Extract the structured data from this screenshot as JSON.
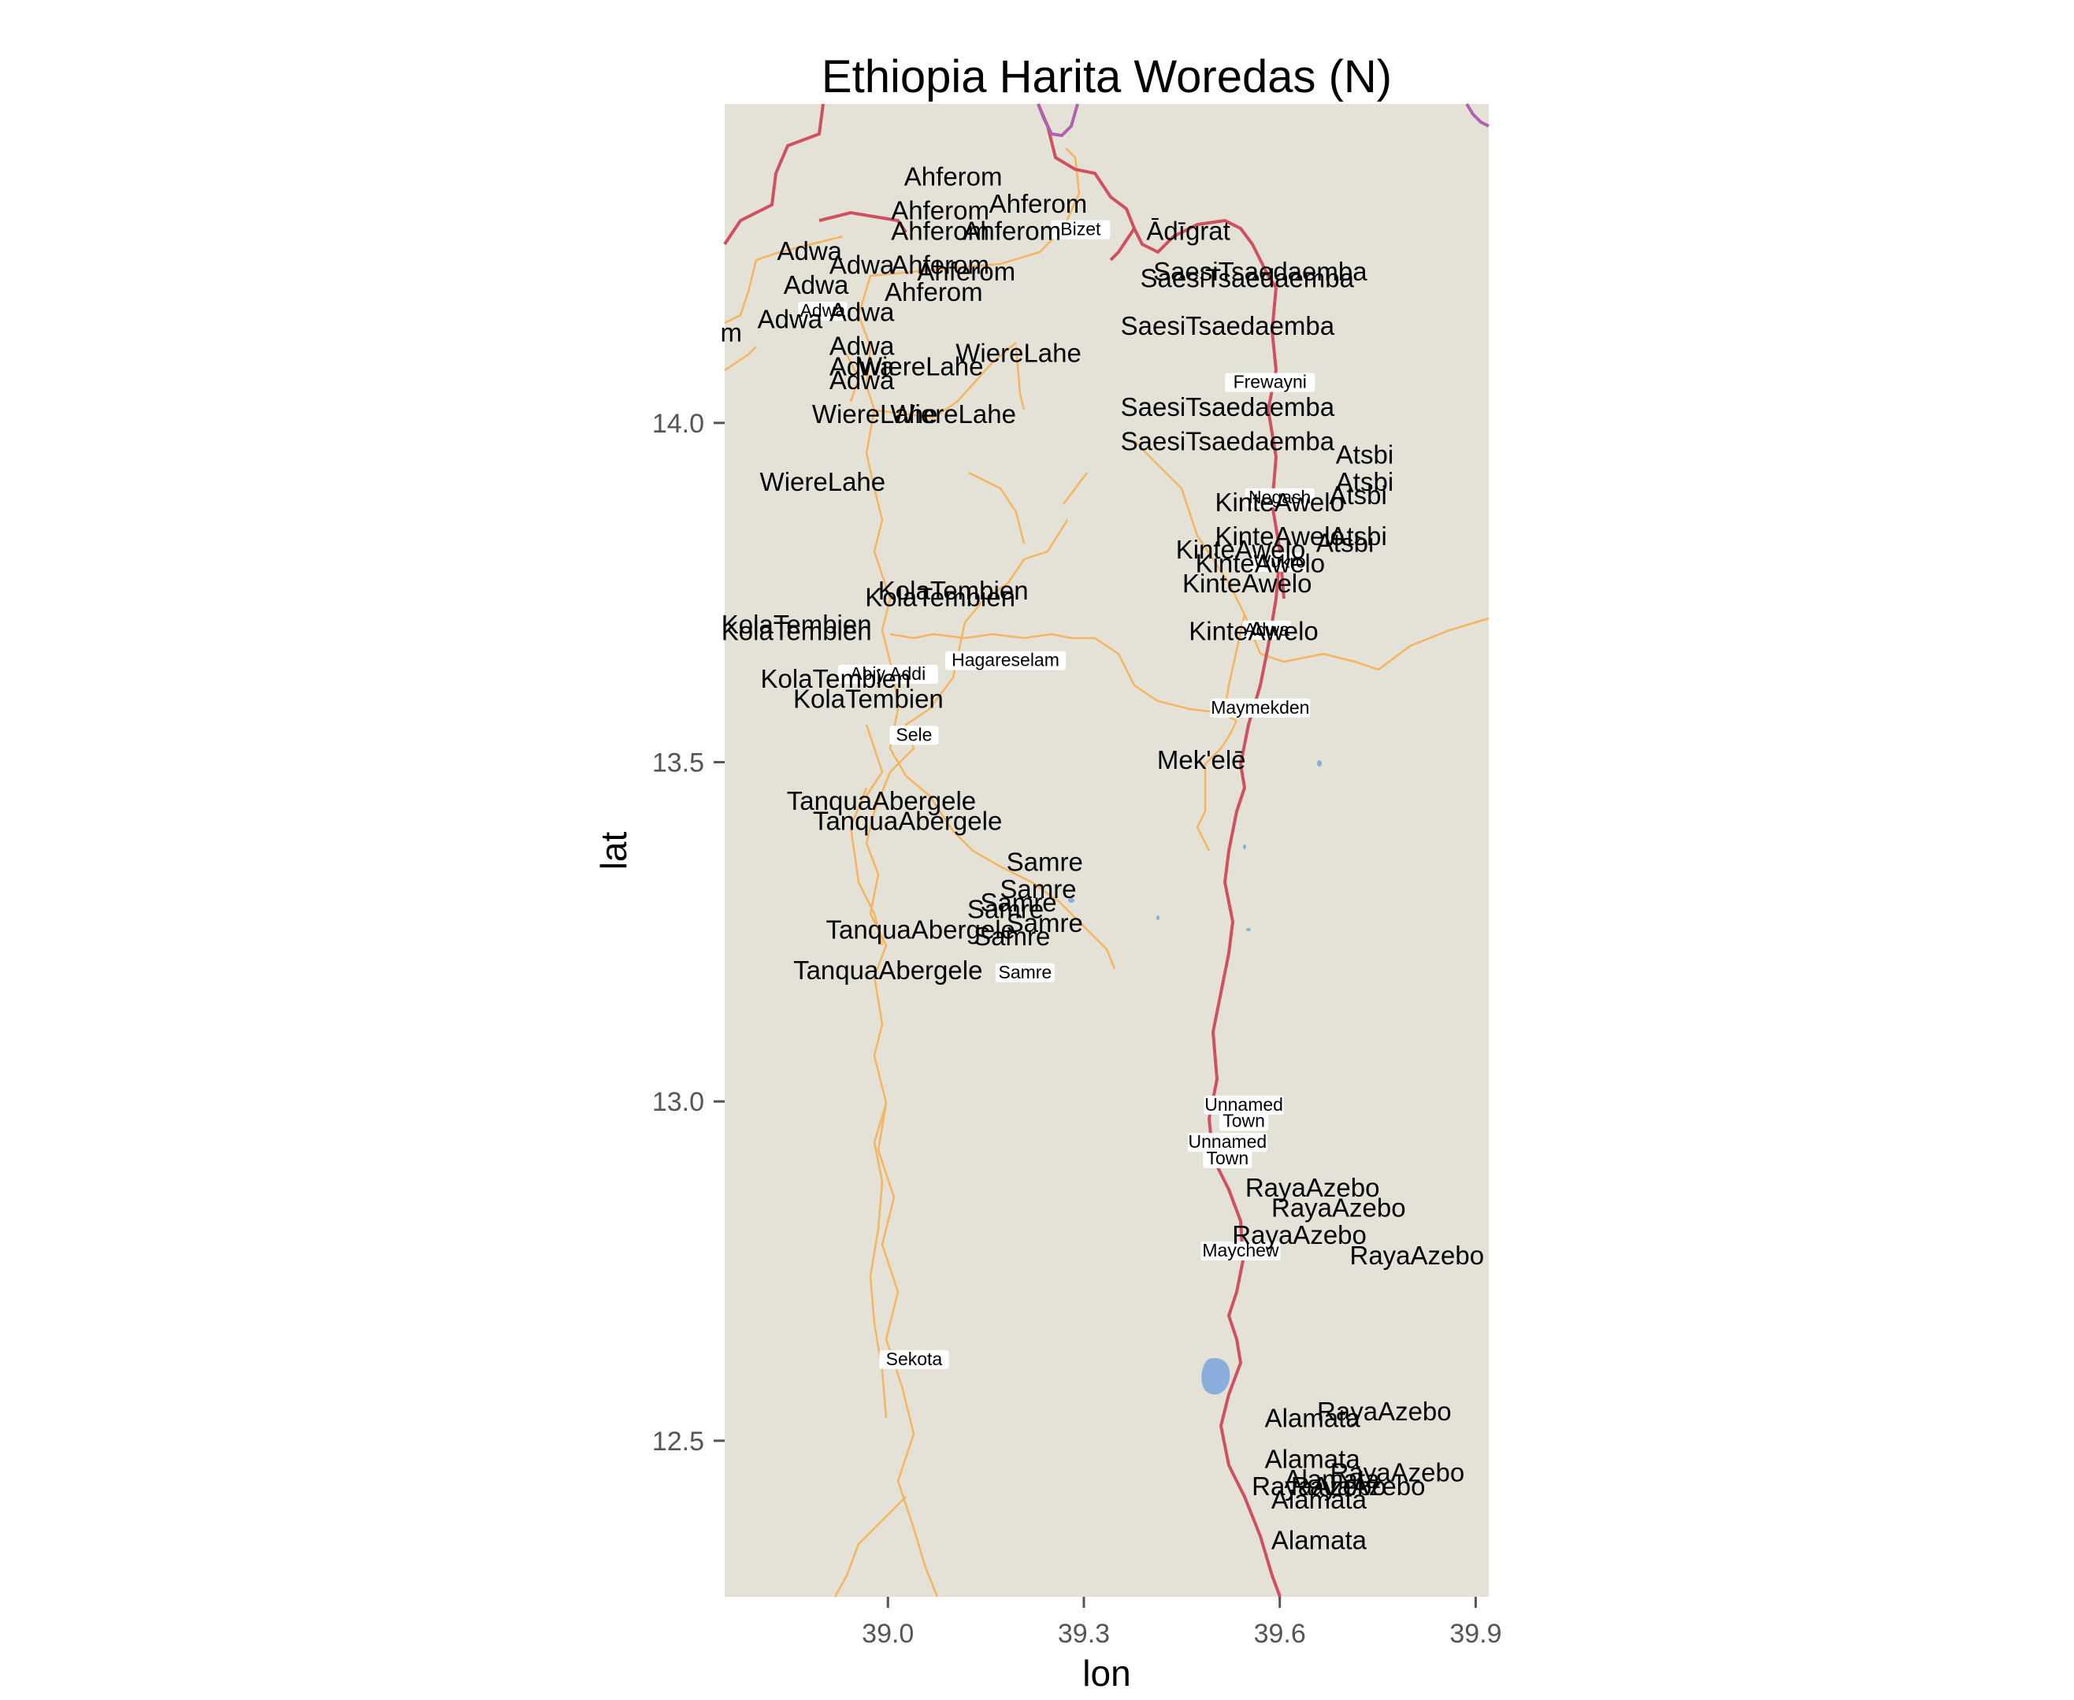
{
  "title": "Ethiopia Harita Woredas (N)",
  "xlabel": "lon",
  "ylabel": "lat",
  "map": {
    "background": "#e4e2d6",
    "colors": {
      "border_national": "#d05060",
      "border_international": "#b060b0",
      "roads": "#f5b560",
      "water": "#8aaedb"
    },
    "xlim": [
      38.75,
      39.92
    ],
    "ylim": [
      12.27,
      14.47
    ],
    "x_ticks": [
      {
        "value": 39.0,
        "label": "39.0"
      },
      {
        "value": 39.3,
        "label": "39.3"
      },
      {
        "value": 39.6,
        "label": "39.6"
      },
      {
        "value": 39.9,
        "label": "39.9"
      }
    ],
    "y_ticks": [
      {
        "value": 12.5,
        "label": "12.5"
      },
      {
        "value": 13.0,
        "label": "13.0"
      },
      {
        "value": 13.5,
        "label": "13.5"
      },
      {
        "value": 14.0,
        "label": "14.0"
      }
    ],
    "woreda_labels": [
      {
        "text": "Ahferom",
        "lon": 39.1,
        "lat": 14.35
      },
      {
        "text": "Ahferom",
        "lon": 39.23,
        "lat": 14.31
      },
      {
        "text": "Ahferom",
        "lon": 39.08,
        "lat": 14.3
      },
      {
        "text": "Ahferom",
        "lon": 39.19,
        "lat": 14.27
      },
      {
        "text": "Ahferom",
        "lon": 39.08,
        "lat": 14.27
      },
      {
        "text": "Ahferom",
        "lon": 39.08,
        "lat": 14.22
      },
      {
        "text": "Ahferom",
        "lon": 39.12,
        "lat": 14.21
      },
      {
        "text": "Ahferom",
        "lon": 39.07,
        "lat": 14.18
      },
      {
        "text": "Ādīgrat",
        "lon": 39.46,
        "lat": 14.27
      },
      {
        "text": "Adwa",
        "lon": 38.88,
        "lat": 14.24
      },
      {
        "text": "Adwa",
        "lon": 38.96,
        "lat": 14.22
      },
      {
        "text": "Adwa",
        "lon": 38.89,
        "lat": 14.19
      },
      {
        "text": "Adwa",
        "lon": 38.85,
        "lat": 14.14
      },
      {
        "text": "Adwa",
        "lon": 38.96,
        "lat": 14.15
      },
      {
        "text": "Adwa",
        "lon": 38.96,
        "lat": 14.1
      },
      {
        "text": "Adwa",
        "lon": 38.96,
        "lat": 14.07
      },
      {
        "text": "Adwa",
        "lon": 38.96,
        "lat": 14.05
      },
      {
        "text": "m",
        "lon": 38.76,
        "lat": 14.12
      },
      {
        "text": "WiereLahe",
        "lon": 39.2,
        "lat": 14.09
      },
      {
        "text": "WiereLahe",
        "lon": 39.05,
        "lat": 14.07
      },
      {
        "text": "WiereLahe",
        "lon": 38.98,
        "lat": 14.0
      },
      {
        "text": "WiereLahe",
        "lon": 39.1,
        "lat": 14.0
      },
      {
        "text": "WiereLahe",
        "lon": 38.9,
        "lat": 13.9
      },
      {
        "text": "SaesiTsaedaemba",
        "lon": 39.57,
        "lat": 14.21
      },
      {
        "text": "SaesiTsaedaemba",
        "lon": 39.55,
        "lat": 14.2
      },
      {
        "text": "SaesiTsaedaemba",
        "lon": 39.52,
        "lat": 14.13
      },
      {
        "text": "SaesiTsaedaemba",
        "lon": 39.52,
        "lat": 14.01
      },
      {
        "text": "SaesiTsaedaemba",
        "lon": 39.52,
        "lat": 13.96
      },
      {
        "text": "Atsbi",
        "lon": 39.73,
        "lat": 13.94
      },
      {
        "text": "Atsbi",
        "lon": 39.73,
        "lat": 13.9
      },
      {
        "text": "Atsbi",
        "lon": 39.72,
        "lat": 13.88
      },
      {
        "text": "Atsbi",
        "lon": 39.72,
        "lat": 13.82
      },
      {
        "text": "Atsbi",
        "lon": 39.7,
        "lat": 13.81
      },
      {
        "text": "KinteAwelo",
        "lon": 39.6,
        "lat": 13.87
      },
      {
        "text": "KinteAwelo",
        "lon": 39.6,
        "lat": 13.82
      },
      {
        "text": "KinteAwelo",
        "lon": 39.54,
        "lat": 13.8
      },
      {
        "text": "KinteAwelo",
        "lon": 39.57,
        "lat": 13.78
      },
      {
        "text": "KinteAwelo",
        "lon": 39.55,
        "lat": 13.75
      },
      {
        "text": "KinteAwelo",
        "lon": 39.56,
        "lat": 13.68
      },
      {
        "text": "KolaTembien",
        "lon": 39.1,
        "lat": 13.74
      },
      {
        "text": "KolaTembien",
        "lon": 39.08,
        "lat": 13.73
      },
      {
        "text": "KolaTembien",
        "lon": 38.86,
        "lat": 13.69
      },
      {
        "text": "KolaTembien",
        "lon": 38.86,
        "lat": 13.68
      },
      {
        "text": "KolaTembien",
        "lon": 38.92,
        "lat": 13.61
      },
      {
        "text": "KolaTembien",
        "lon": 38.97,
        "lat": 13.58
      },
      {
        "text": "TanquaAbergele",
        "lon": 38.99,
        "lat": 13.43
      },
      {
        "text": "TanquaAbergele",
        "lon": 39.03,
        "lat": 13.4
      },
      {
        "text": "TanquaAbergele",
        "lon": 39.05,
        "lat": 13.24
      },
      {
        "text": "TanquaAbergele",
        "lon": 39.0,
        "lat": 13.18
      },
      {
        "text": "Samre",
        "lon": 39.24,
        "lat": 13.34
      },
      {
        "text": "Samre",
        "lon": 39.23,
        "lat": 13.3
      },
      {
        "text": "Samre",
        "lon": 39.2,
        "lat": 13.28
      },
      {
        "text": "Samre",
        "lon": 39.18,
        "lat": 13.27
      },
      {
        "text": "Samre",
        "lon": 39.24,
        "lat": 13.25
      },
      {
        "text": "Samre",
        "lon": 39.19,
        "lat": 13.23
      },
      {
        "text": "Mek'elē",
        "lon": 39.48,
        "lat": 13.49
      },
      {
        "text": "RayaAzebo",
        "lon": 39.65,
        "lat": 12.86
      },
      {
        "text": "RayaAzebo",
        "lon": 39.69,
        "lat": 12.83
      },
      {
        "text": "RayaAzebo",
        "lon": 39.63,
        "lat": 12.79
      },
      {
        "text": "RayaAzebo",
        "lon": 39.81,
        "lat": 12.76
      },
      {
        "text": "RayaAzebo",
        "lon": 39.76,
        "lat": 12.53
      },
      {
        "text": "Alamata",
        "lon": 39.65,
        "lat": 12.52
      },
      {
        "text": "Alamata",
        "lon": 39.65,
        "lat": 12.46
      },
      {
        "text": "RayaAzebo",
        "lon": 39.78,
        "lat": 12.44
      },
      {
        "text": "Alamata",
        "lon": 39.68,
        "lat": 12.43
      },
      {
        "text": "RayaAzebo",
        "lon": 39.72,
        "lat": 12.42
      },
      {
        "text": "RayaAzebo",
        "lon": 39.66,
        "lat": 12.42
      },
      {
        "text": "Alamata",
        "lon": 39.66,
        "lat": 12.4
      },
      {
        "text": "Alamata",
        "lon": 39.66,
        "lat": 12.34
      }
    ],
    "town_labels": [
      {
        "text": "Bizet",
        "lon": 39.295,
        "lat": 14.28
      },
      {
        "text": "Adwa",
        "lon": 38.9,
        "lat": 14.16
      },
      {
        "text": "Frewayni",
        "lon": 39.585,
        "lat": 14.055
      },
      {
        "text": "Negash",
        "lon": 39.6,
        "lat": 13.885
      },
      {
        "text": "Wukro",
        "lon": 39.6,
        "lat": 13.79
      },
      {
        "text": "Abiy Addi",
        "lon": 39.0,
        "lat": 13.625
      },
      {
        "text": "Hagareselam",
        "lon": 39.18,
        "lat": 13.645
      },
      {
        "text": "Adwa",
        "lon": 39.58,
        "lat": 13.69
      },
      {
        "text": "Maymekden",
        "lon": 39.57,
        "lat": 13.575
      },
      {
        "text": "Sele",
        "lon": 39.04,
        "lat": 13.535
      },
      {
        "text": "Samre",
        "lon": 39.21,
        "lat": 13.185
      },
      {
        "text": "Unnamed",
        "lon": 39.545,
        "lat": 12.99
      },
      {
        "text": "Town",
        "lon": 39.545,
        "lat": 12.966
      },
      {
        "text": "Unnamed",
        "lon": 39.52,
        "lat": 12.935
      },
      {
        "text": "Town",
        "lon": 39.52,
        "lat": 12.911
      },
      {
        "text": "Maychew",
        "lon": 39.54,
        "lat": 12.775
      },
      {
        "text": "Sekota",
        "lon": 39.04,
        "lat": 12.615
      }
    ]
  }
}
